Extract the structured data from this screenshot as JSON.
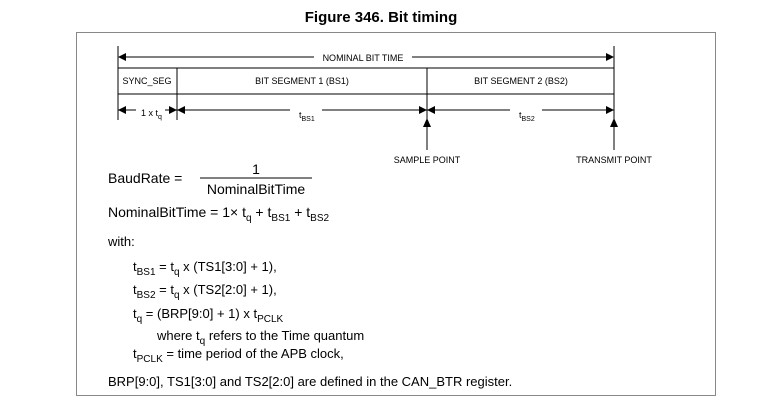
{
  "figure_title": "Figure 346. Bit timing",
  "diagram": {
    "nominal_bit_time": "NOMINAL BIT TIME",
    "segments": [
      "SYNC_SEG",
      "BIT SEGMENT 1 (BS1)",
      "BIT SEGMENT 2 (BS2)"
    ],
    "tq_label": "1 x t",
    "tq_sub": "q",
    "tbs1": "t",
    "tbs1_sub": "BS1",
    "tbs2": "t",
    "tbs2_sub": "BS2",
    "sample_point": "SAMPLE POINT",
    "transmit_point": "TRANSMIT POINT"
  },
  "formulas": {
    "baud_lhs": "BaudRate  =",
    "baud_num": "1",
    "baud_den": "NominalBitTime",
    "nbt_lhs": "NominalBitTime  =  1× t",
    "nbt_q": "q",
    "nbt_plus1": " + t",
    "nbt_bs1": "BS1",
    "nbt_plus2": " + t",
    "nbt_bs2": "BS2",
    "with": "with:",
    "l1_a": "t",
    "l1_sub": "BS1",
    "l1_b": " = t",
    "l1_q": "q",
    "l1_c": " x (TS1[3:0] + 1),",
    "l2_a": "t",
    "l2_sub": "BS2",
    "l2_b": " = t",
    "l2_q": "q",
    "l2_c": " x (TS2[2:0] + 1),",
    "l3_a": "t",
    "l3_q": "q",
    "l3_b": " = (BRP[9:0] + 1) x t",
    "l3_pclk": "PCLK",
    "l4_a": "where t",
    "l4_q": "q",
    "l4_b": " refers to the Time quantum",
    "l5_a": "t",
    "l5_pclk": "PCLK",
    "l5_b": " = time period of the APB clock,",
    "footer": "BRP[9:0], TS1[3:0] and TS2[2:0] are defined in the CAN_BTR register."
  }
}
